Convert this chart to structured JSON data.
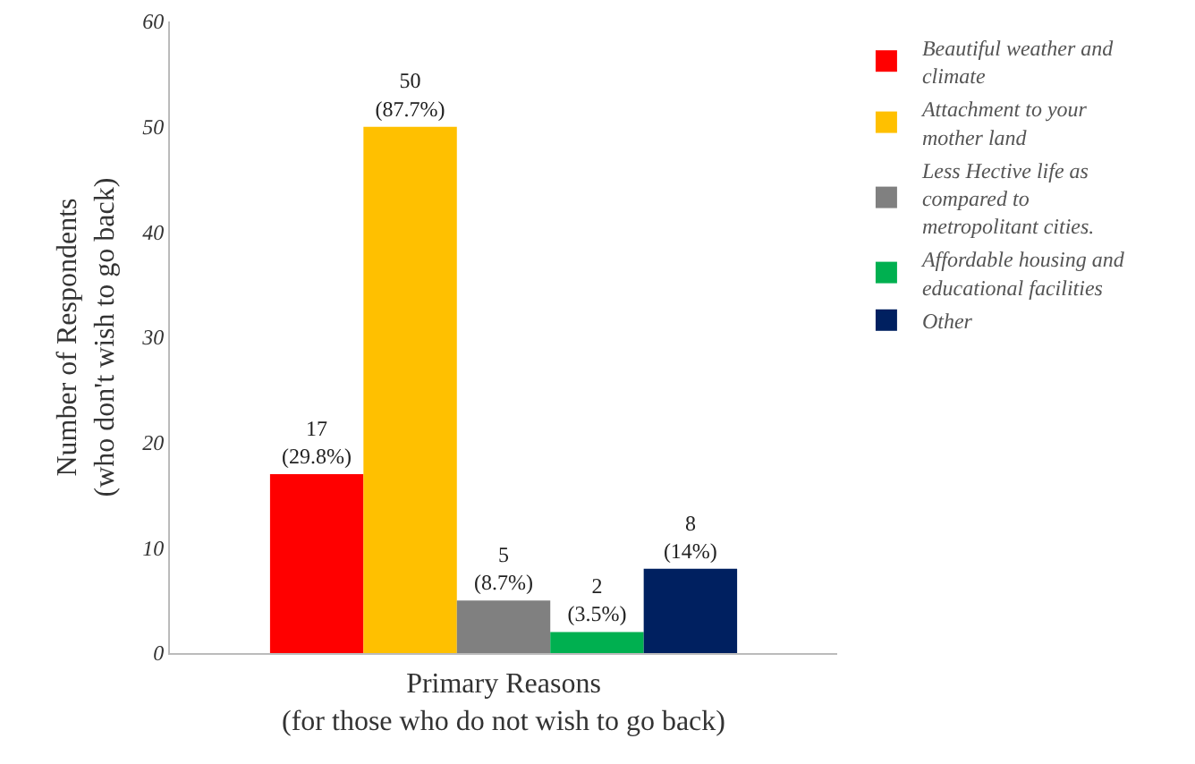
{
  "chart_data": {
    "type": "bar",
    "xlabel": "Primary Reasons\n(for those who do not wish to go back)",
    "ylabel": "Number of Respondents\n(who don't wish to go back)",
    "categories": [
      null
    ],
    "series": [
      {
        "name": "Beautiful weather and climate",
        "color": "#ff0000",
        "values": [
          17
        ],
        "value_labels": [
          "17\n(29.8%)"
        ]
      },
      {
        "name": "Attachment to your mother land",
        "color": "#ffc000",
        "values": [
          50
        ],
        "value_labels": [
          "50\n(87.7%)"
        ]
      },
      {
        "name": "Less Hective life as compared to metropolitant cities.",
        "color": "#808080",
        "values": [
          5
        ],
        "value_labels": [
          "5\n(8.7%)"
        ]
      },
      {
        "name": "Affordable housing and educational facilities",
        "color": "#00b050",
        "values": [
          2
        ],
        "value_labels": [
          "2\n(3.5%)"
        ]
      },
      {
        "name": "Other",
        "color": "#002060",
        "values": [
          8
        ],
        "value_labels": [
          "8\n(14%)"
        ]
      }
    ],
    "ylim": [
      0,
      60
    ],
    "yticks": [
      0,
      10,
      20,
      30,
      40,
      50,
      60
    ],
    "grid": false,
    "legend": "right"
  }
}
